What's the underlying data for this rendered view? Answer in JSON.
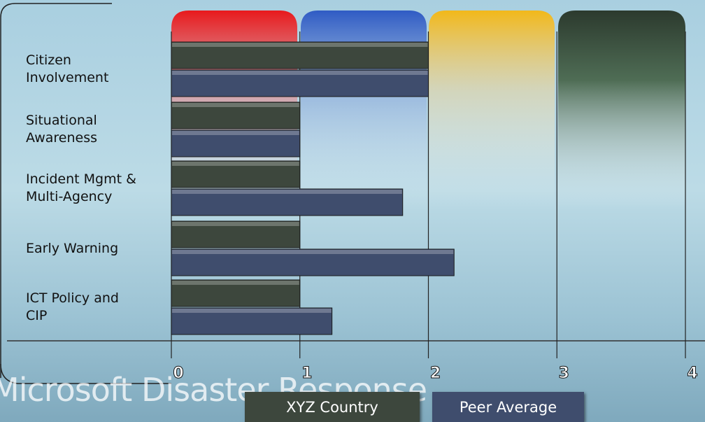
{
  "chart_data": {
    "type": "bar",
    "orientation": "horizontal",
    "brand": "Microsoft Disaster Response",
    "categories": [
      "Citizen Involvement",
      "Situational Awareness",
      "Incident Mgmt & Multi-Agency",
      "Early Warning",
      "ICT Policy and CIP"
    ],
    "series": [
      {
        "name": "XYZ  Country",
        "color": "#3d473d",
        "values": [
          2,
          1,
          1,
          1,
          1
        ]
      },
      {
        "name": "Peer Average",
        "color": "#3f4d6d",
        "values": [
          2,
          1,
          1.8,
          2.2,
          1.25
        ]
      }
    ],
    "xlim": [
      0,
      4
    ],
    "xticks": [
      0,
      1,
      2,
      3,
      4
    ],
    "grid": true
  }
}
